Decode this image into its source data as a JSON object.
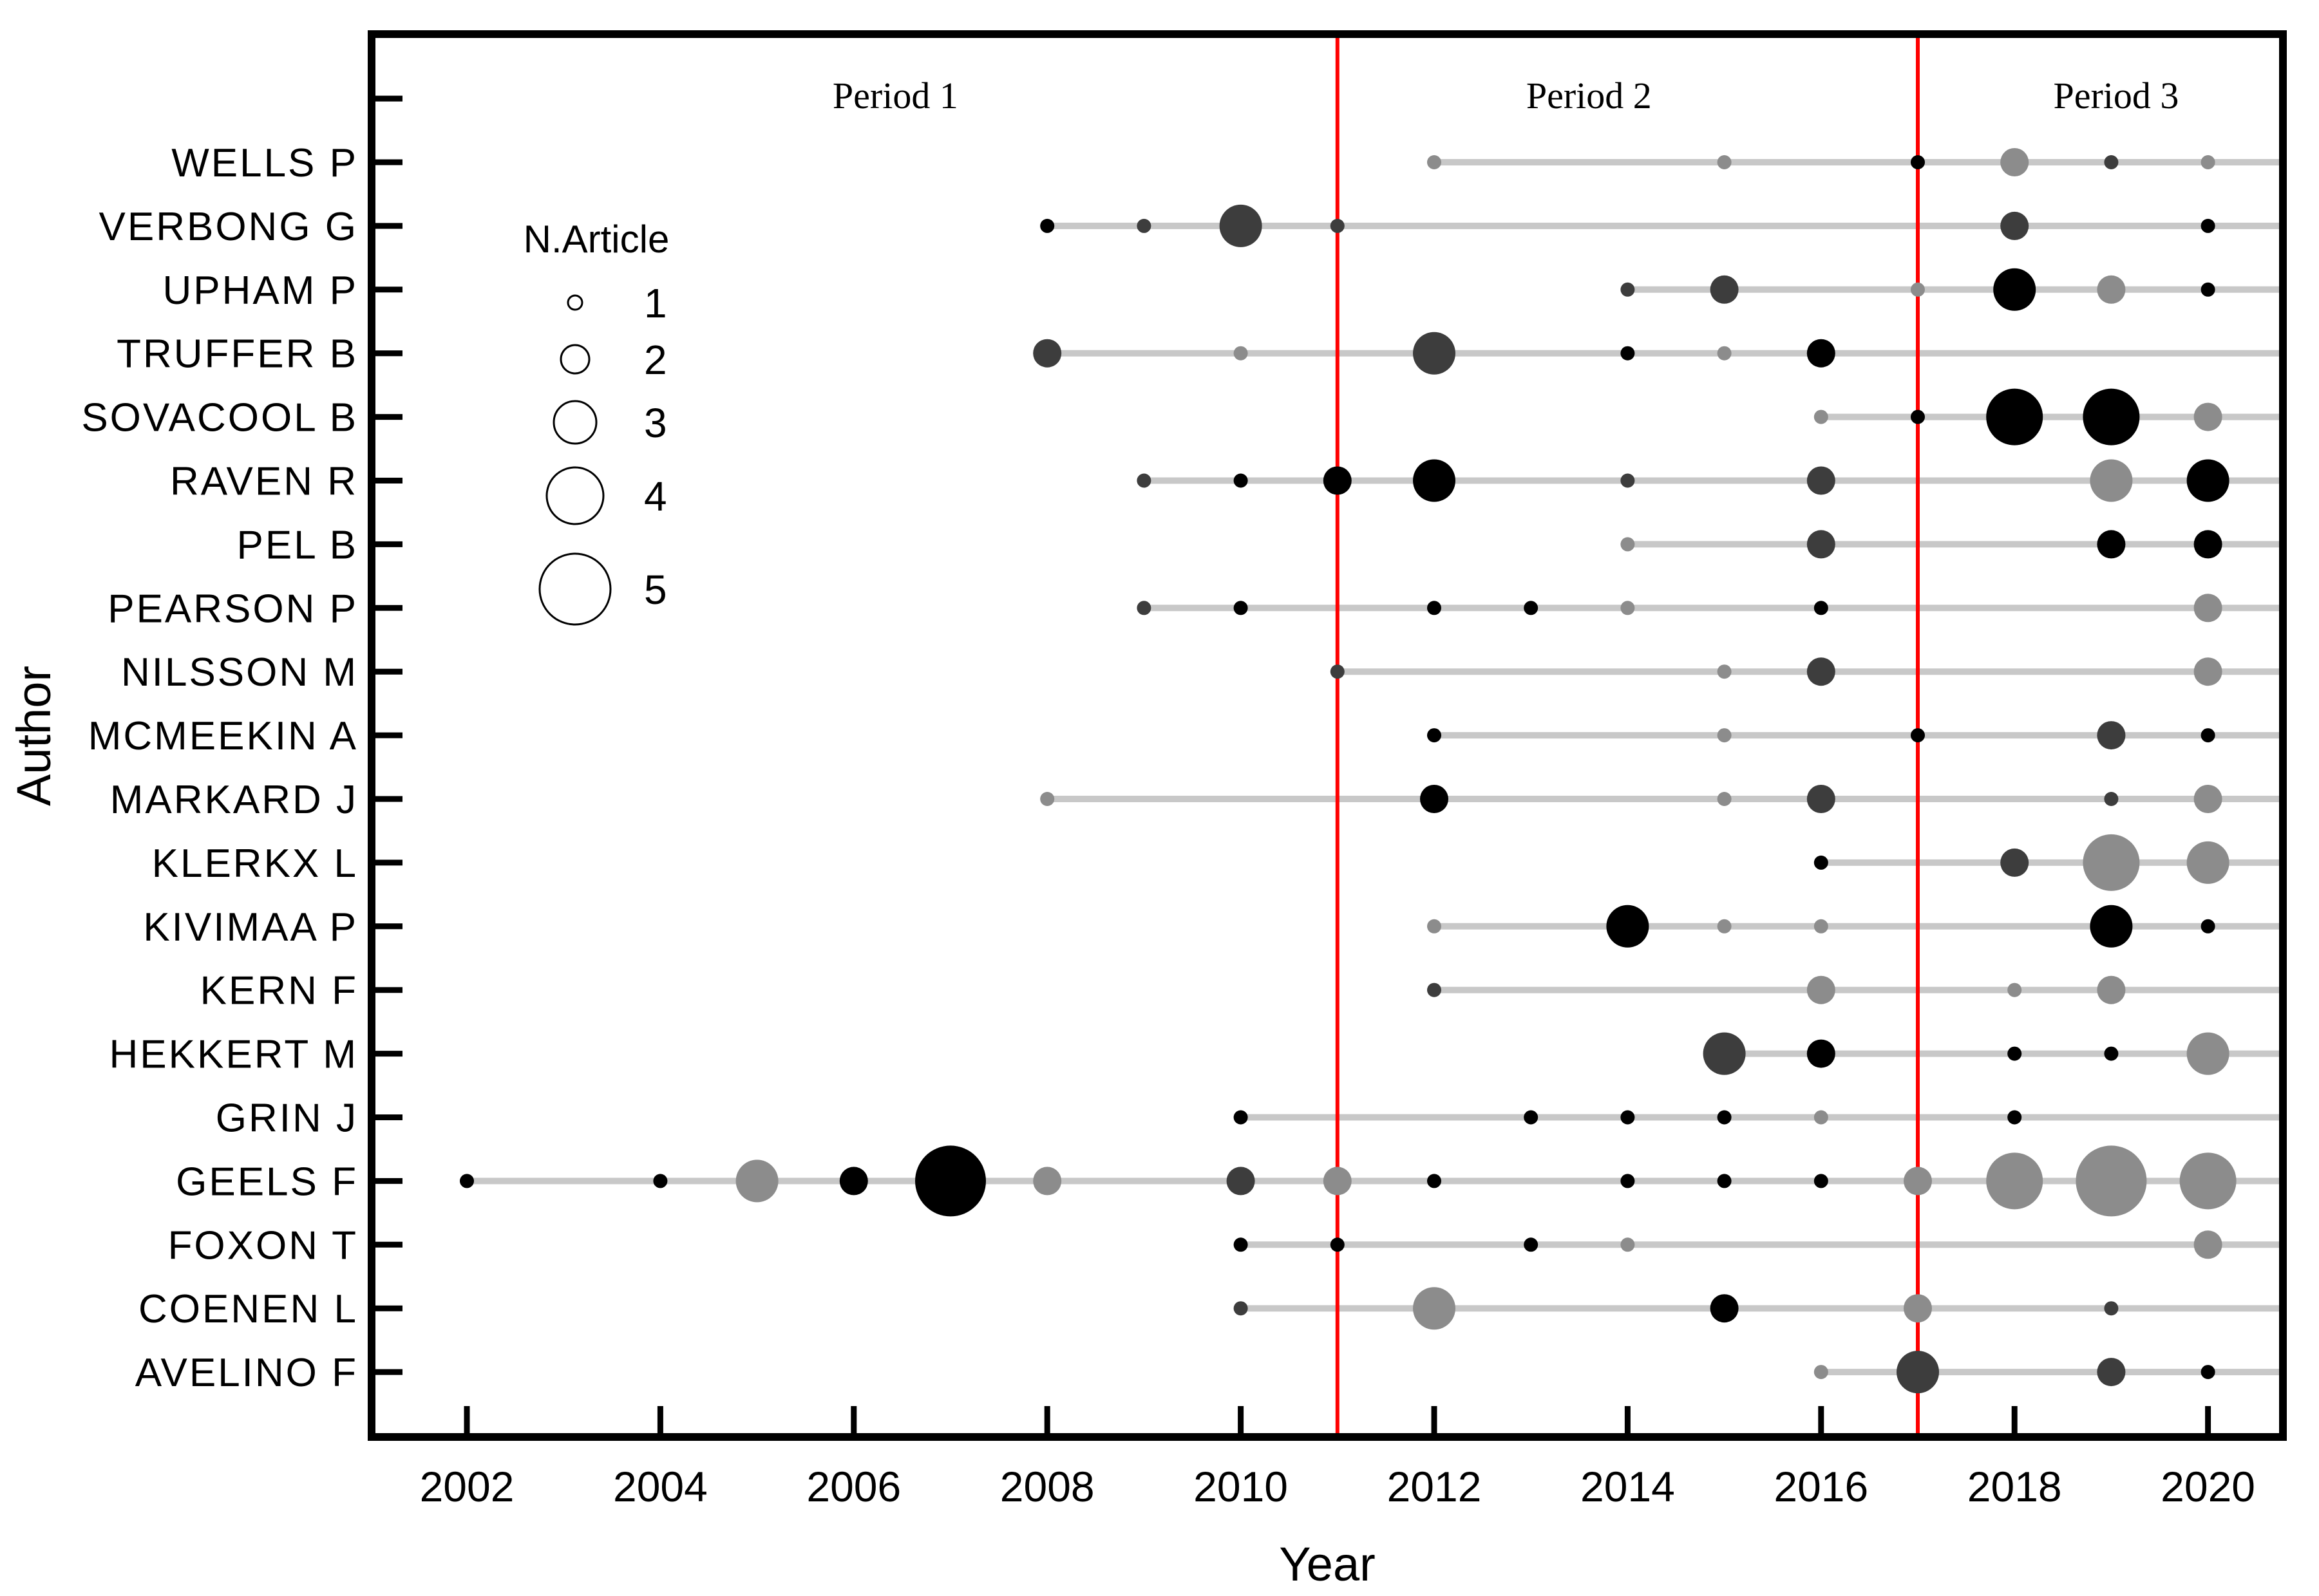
{
  "chart_data": {
    "type": "bubble",
    "xlabel": "Year",
    "ylabel": "Author",
    "x_ticks": [
      2002,
      2004,
      2006,
      2008,
      2010,
      2012,
      2014,
      2016,
      2018,
      2020
    ],
    "x_range": [
      2001.0,
      2020.77
    ],
    "grid": "off",
    "legend": {
      "title": "N.Article",
      "sizes": [
        1,
        2,
        3,
        4,
        5
      ],
      "position": "upper-left-inside"
    },
    "period_dividers_years": [
      2011,
      2017
    ],
    "periods": [
      {
        "label": "Period 1",
        "x_year": 2006.43
      },
      {
        "label": "Period 2",
        "x_year": 2013.6
      },
      {
        "label": "Period 3",
        "x_year": 2019.05
      }
    ],
    "colors": {
      "black": "#000000",
      "dark": "#3d3d3d",
      "gray": "#8c8c8c",
      "rail": "#c8c8c8",
      "divider": "#ff0000",
      "frame": "#000000"
    },
    "authors": [
      {
        "name": "WELLS P",
        "points": [
          {
            "year": 2012,
            "n": 1,
            "color": "gray"
          },
          {
            "year": 2015,
            "n": 1,
            "color": "gray"
          },
          {
            "year": 2017,
            "n": 1,
            "color": "black"
          },
          {
            "year": 2018,
            "n": 2,
            "color": "gray"
          },
          {
            "year": 2019,
            "n": 1,
            "color": "dark"
          },
          {
            "year": 2020,
            "n": 1,
            "color": "gray"
          }
        ]
      },
      {
        "name": "VERBONG G",
        "points": [
          {
            "year": 2008,
            "n": 1,
            "color": "black"
          },
          {
            "year": 2009,
            "n": 1,
            "color": "dark"
          },
          {
            "year": 2010,
            "n": 3,
            "color": "dark"
          },
          {
            "year": 2011,
            "n": 1,
            "color": "dark"
          },
          {
            "year": 2018,
            "n": 2,
            "color": "dark"
          },
          {
            "year": 2020,
            "n": 1,
            "color": "black"
          }
        ]
      },
      {
        "name": "UPHAM P",
        "points": [
          {
            "year": 2014,
            "n": 1,
            "color": "dark"
          },
          {
            "year": 2015,
            "n": 2,
            "color": "dark"
          },
          {
            "year": 2017,
            "n": 1,
            "color": "gray"
          },
          {
            "year": 2018,
            "n": 3,
            "color": "black"
          },
          {
            "year": 2019,
            "n": 2,
            "color": "gray"
          },
          {
            "year": 2020,
            "n": 1,
            "color": "black"
          }
        ]
      },
      {
        "name": "TRUFFER B",
        "points": [
          {
            "year": 2008,
            "n": 2,
            "color": "dark"
          },
          {
            "year": 2010,
            "n": 1,
            "color": "gray"
          },
          {
            "year": 2012,
            "n": 3,
            "color": "dark"
          },
          {
            "year": 2014,
            "n": 1,
            "color": "black"
          },
          {
            "year": 2015,
            "n": 1,
            "color": "gray"
          },
          {
            "year": 2016,
            "n": 2,
            "color": "black"
          }
        ]
      },
      {
        "name": "SOVACOOL B",
        "points": [
          {
            "year": 2016,
            "n": 1,
            "color": "gray"
          },
          {
            "year": 2017,
            "n": 1,
            "color": "black"
          },
          {
            "year": 2018,
            "n": 4,
            "color": "black"
          },
          {
            "year": 2019,
            "n": 4,
            "color": "black"
          },
          {
            "year": 2020,
            "n": 2,
            "color": "gray"
          }
        ]
      },
      {
        "name": "RAVEN R",
        "points": [
          {
            "year": 2009,
            "n": 1,
            "color": "dark"
          },
          {
            "year": 2010,
            "n": 1,
            "color": "black"
          },
          {
            "year": 2011,
            "n": 2,
            "color": "black"
          },
          {
            "year": 2012,
            "n": 3,
            "color": "black"
          },
          {
            "year": 2014,
            "n": 1,
            "color": "dark"
          },
          {
            "year": 2016,
            "n": 2,
            "color": "dark"
          },
          {
            "year": 2019,
            "n": 3,
            "color": "gray"
          },
          {
            "year": 2020,
            "n": 3,
            "color": "black"
          }
        ]
      },
      {
        "name": "PEL B",
        "points": [
          {
            "year": 2014,
            "n": 1,
            "color": "gray"
          },
          {
            "year": 2016,
            "n": 2,
            "color": "dark"
          },
          {
            "year": 2019,
            "n": 2,
            "color": "black"
          },
          {
            "year": 2020,
            "n": 2,
            "color": "black"
          }
        ]
      },
      {
        "name": "PEARSON P",
        "points": [
          {
            "year": 2009,
            "n": 1,
            "color": "dark"
          },
          {
            "year": 2010,
            "n": 1,
            "color": "black"
          },
          {
            "year": 2012,
            "n": 1,
            "color": "black"
          },
          {
            "year": 2013,
            "n": 1,
            "color": "black"
          },
          {
            "year": 2014,
            "n": 1,
            "color": "gray"
          },
          {
            "year": 2016,
            "n": 1,
            "color": "black"
          },
          {
            "year": 2020,
            "n": 2,
            "color": "gray"
          }
        ]
      },
      {
        "name": "NILSSON M",
        "points": [
          {
            "year": 2011,
            "n": 1,
            "color": "dark"
          },
          {
            "year": 2015,
            "n": 1,
            "color": "gray"
          },
          {
            "year": 2016,
            "n": 2,
            "color": "dark"
          },
          {
            "year": 2020,
            "n": 2,
            "color": "gray"
          }
        ]
      },
      {
        "name": "MCMEEKIN A",
        "points": [
          {
            "year": 2012,
            "n": 1,
            "color": "black"
          },
          {
            "year": 2015,
            "n": 1,
            "color": "gray"
          },
          {
            "year": 2017,
            "n": 1,
            "color": "black"
          },
          {
            "year": 2019,
            "n": 2,
            "color": "dark"
          },
          {
            "year": 2020,
            "n": 1,
            "color": "black"
          }
        ]
      },
      {
        "name": "MARKARD J",
        "points": [
          {
            "year": 2008,
            "n": 1,
            "color": "gray"
          },
          {
            "year": 2012,
            "n": 2,
            "color": "black"
          },
          {
            "year": 2015,
            "n": 1,
            "color": "gray"
          },
          {
            "year": 2016,
            "n": 2,
            "color": "dark"
          },
          {
            "year": 2019,
            "n": 1,
            "color": "dark"
          },
          {
            "year": 2020,
            "n": 2,
            "color": "gray"
          }
        ]
      },
      {
        "name": "KLERKX L",
        "points": [
          {
            "year": 2016,
            "n": 1,
            "color": "black"
          },
          {
            "year": 2018,
            "n": 2,
            "color": "dark"
          },
          {
            "year": 2019,
            "n": 4,
            "color": "gray"
          },
          {
            "year": 2020,
            "n": 3,
            "color": "gray"
          }
        ]
      },
      {
        "name": "KIVIMAA P",
        "points": [
          {
            "year": 2012,
            "n": 1,
            "color": "gray"
          },
          {
            "year": 2014,
            "n": 3,
            "color": "black"
          },
          {
            "year": 2015,
            "n": 1,
            "color": "gray"
          },
          {
            "year": 2016,
            "n": 1,
            "color": "gray"
          },
          {
            "year": 2019,
            "n": 3,
            "color": "black"
          },
          {
            "year": 2020,
            "n": 1,
            "color": "black"
          }
        ]
      },
      {
        "name": "KERN F",
        "points": [
          {
            "year": 2012,
            "n": 1,
            "color": "dark"
          },
          {
            "year": 2016,
            "n": 2,
            "color": "gray"
          },
          {
            "year": 2018,
            "n": 1,
            "color": "gray"
          },
          {
            "year": 2019,
            "n": 2,
            "color": "gray"
          }
        ]
      },
      {
        "name": "HEKKERT M",
        "points": [
          {
            "year": 2015,
            "n": 3,
            "color": "dark"
          },
          {
            "year": 2016,
            "n": 2,
            "color": "black"
          },
          {
            "year": 2018,
            "n": 1,
            "color": "black"
          },
          {
            "year": 2019,
            "n": 1,
            "color": "black"
          },
          {
            "year": 2020,
            "n": 3,
            "color": "gray"
          }
        ]
      },
      {
        "name": "GRIN J",
        "points": [
          {
            "year": 2010,
            "n": 1,
            "color": "black"
          },
          {
            "year": 2013,
            "n": 1,
            "color": "black"
          },
          {
            "year": 2014,
            "n": 1,
            "color": "black"
          },
          {
            "year": 2015,
            "n": 1,
            "color": "black"
          },
          {
            "year": 2016,
            "n": 1,
            "color": "gray"
          },
          {
            "year": 2018,
            "n": 1,
            "color": "black"
          }
        ]
      },
      {
        "name": "GEELS F",
        "points": [
          {
            "year": 2002,
            "n": 1,
            "color": "black"
          },
          {
            "year": 2004,
            "n": 1,
            "color": "black"
          },
          {
            "year": 2005,
            "n": 3,
            "color": "gray"
          },
          {
            "year": 2006,
            "n": 2,
            "color": "black"
          },
          {
            "year": 2007,
            "n": 5,
            "color": "black"
          },
          {
            "year": 2008,
            "n": 2,
            "color": "gray"
          },
          {
            "year": 2010,
            "n": 2,
            "color": "dark"
          },
          {
            "year": 2011,
            "n": 2,
            "color": "gray"
          },
          {
            "year": 2012,
            "n": 1,
            "color": "black"
          },
          {
            "year": 2014,
            "n": 1,
            "color": "black"
          },
          {
            "year": 2015,
            "n": 1,
            "color": "black"
          },
          {
            "year": 2016,
            "n": 1,
            "color": "black"
          },
          {
            "year": 2017,
            "n": 2,
            "color": "gray"
          },
          {
            "year": 2018,
            "n": 4,
            "color": "gray"
          },
          {
            "year": 2019,
            "n": 5,
            "color": "gray"
          },
          {
            "year": 2020,
            "n": 4,
            "color": "gray"
          }
        ]
      },
      {
        "name": "FOXON T",
        "points": [
          {
            "year": 2010,
            "n": 1,
            "color": "black"
          },
          {
            "year": 2011,
            "n": 1,
            "color": "black"
          },
          {
            "year": 2013,
            "n": 1,
            "color": "black"
          },
          {
            "year": 2014,
            "n": 1,
            "color": "gray"
          },
          {
            "year": 2020,
            "n": 2,
            "color": "gray"
          }
        ]
      },
      {
        "name": "COENEN L",
        "points": [
          {
            "year": 2010,
            "n": 1,
            "color": "dark"
          },
          {
            "year": 2012,
            "n": 3,
            "color": "gray"
          },
          {
            "year": 2015,
            "n": 2,
            "color": "black"
          },
          {
            "year": 2017,
            "n": 2,
            "color": "gray"
          },
          {
            "year": 2019,
            "n": 1,
            "color": "dark"
          }
        ]
      },
      {
        "name": "AVELINO F",
        "points": [
          {
            "year": 2016,
            "n": 1,
            "color": "gray"
          },
          {
            "year": 2017,
            "n": 3,
            "color": "dark"
          },
          {
            "year": 2019,
            "n": 2,
            "color": "dark"
          },
          {
            "year": 2020,
            "n": 1,
            "color": "black"
          }
        ]
      }
    ]
  }
}
